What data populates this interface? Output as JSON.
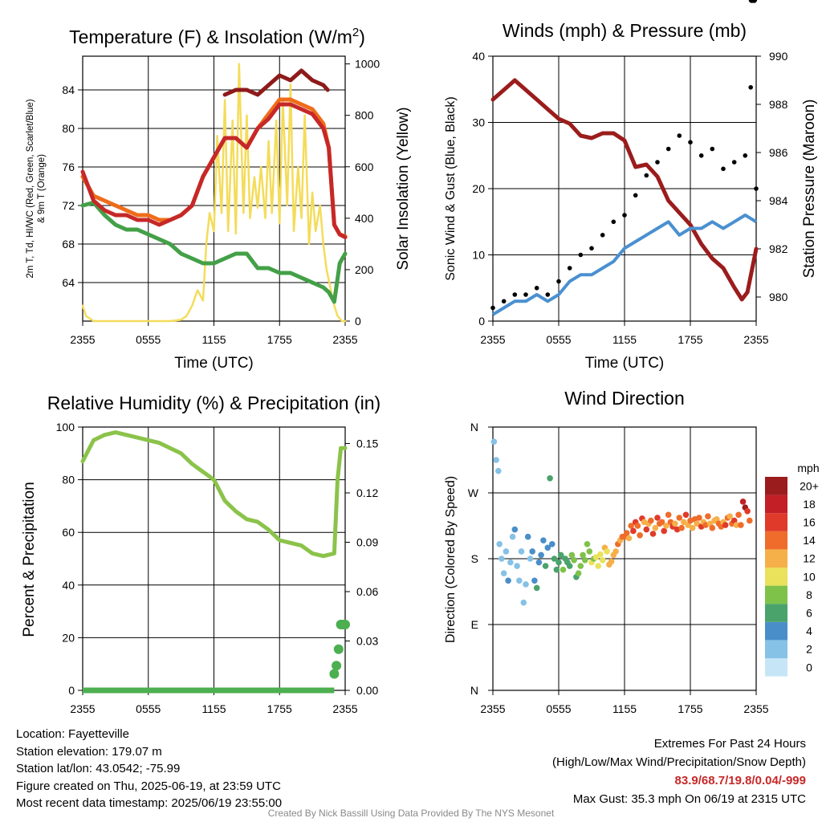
{
  "chart_data": [
    {
      "type": "line",
      "title": "Temperature (F) & Insolation (W/m²)",
      "title_main": "Temperature (F) & Insolation (W/m",
      "title_sup": "2",
      "title_end": ")",
      "xlabel": "Time (UTC)",
      "ylabel_lines": [
        "2m T, Td, HI/WC (Red, Green, Scarlet/Blue)",
        "& 9m T (Orange)"
      ],
      "y2label": "Solar Insolation (Yellow)",
      "x_ticks": [
        "2355",
        "0555",
        "1155",
        "1755",
        "2355"
      ],
      "ylim": [
        60,
        87.5
      ],
      "y_ticks": [
        64,
        68,
        72,
        76,
        80,
        84
      ],
      "y2lim": [
        0,
        1030
      ],
      "y2_ticks": [
        0,
        200,
        400,
        600,
        800,
        1000
      ],
      "x_hours": [
        0,
        24
      ],
      "series": [
        {
          "name": "2m T",
          "color": "#c62828",
          "x": [
            0,
            1,
            2,
            3,
            4,
            5,
            6,
            7,
            8,
            9,
            10,
            11,
            12,
            13,
            14,
            15,
            16,
            17,
            18,
            19,
            20,
            21,
            22,
            22.5,
            23,
            23.5,
            24
          ],
          "values": [
            75.5,
            72.5,
            71.5,
            71,
            71,
            70.5,
            70.5,
            70,
            70.5,
            71,
            72,
            75,
            77,
            79,
            79,
            78,
            80,
            81,
            82.5,
            82.5,
            82,
            81.5,
            80,
            78,
            70,
            69,
            68.7
          ]
        },
        {
          "name": "9m T",
          "color": "#ef6c1a",
          "x": [
            0,
            1,
            2,
            3,
            4,
            5,
            6,
            7,
            8,
            9,
            10,
            11,
            12,
            13,
            14,
            15,
            16,
            17,
            18,
            19,
            20,
            21,
            22,
            22.5,
            23,
            23.5,
            24
          ],
          "values": [
            75,
            73,
            72.5,
            72,
            71.5,
            71,
            71,
            70.5,
            70.5,
            71,
            72,
            75,
            77,
            79,
            79,
            78,
            80,
            81.5,
            83,
            83,
            82.5,
            82,
            80.5,
            78,
            70,
            69,
            68.8
          ]
        },
        {
          "name": "Td",
          "color": "#43a047",
          "x": [
            0,
            1,
            2,
            3,
            4,
            5,
            6,
            7,
            8,
            9,
            10,
            11,
            12,
            13,
            14,
            15,
            16,
            17,
            18,
            19,
            20,
            21,
            22,
            22.5,
            23,
            23.5,
            24
          ],
          "values": [
            72,
            72.3,
            71,
            70,
            69.5,
            69.5,
            69,
            68.5,
            68,
            67,
            66.5,
            66,
            66,
            66.5,
            67,
            67,
            65.5,
            65.5,
            65,
            65,
            64.5,
            64,
            63.5,
            63,
            62,
            66,
            67
          ]
        },
        {
          "name": "HI/WC",
          "color": "#8e1a1a",
          "x": [
            13,
            14,
            15,
            16,
            17,
            18,
            19,
            20,
            21,
            22,
            22.4
          ],
          "values": [
            83.5,
            84,
            84,
            83.5,
            84.5,
            85.5,
            85,
            86,
            85,
            84.5,
            84
          ]
        },
        {
          "name": "Insolation",
          "color": "#f4dc5a",
          "axis": "y2",
          "x": [
            0,
            0.3,
            1,
            2,
            3,
            4,
            5,
            6,
            7,
            8,
            9,
            9.5,
            10,
            10.5,
            11,
            11.3,
            11.6,
            12,
            12.3,
            12.7,
            13,
            13.3,
            13.7,
            14,
            14.3,
            14.7,
            15,
            15.3,
            15.7,
            16,
            16.3,
            16.7,
            17,
            17.3,
            17.7,
            18,
            18.3,
            18.7,
            19,
            19.3,
            19.7,
            20,
            20.3,
            20.7,
            21,
            21.3,
            21.7,
            22,
            22.3,
            22.7,
            23,
            23.3,
            23.7,
            24
          ],
          "values": [
            60,
            20,
            0,
            0,
            0,
            0,
            0,
            0,
            0,
            0,
            5,
            20,
            60,
            120,
            80,
            300,
            420,
            350,
            720,
            420,
            860,
            350,
            780,
            340,
            1000,
            420,
            800,
            400,
            560,
            440,
            600,
            400,
            700,
            420,
            780,
            380,
            860,
            450,
            920,
            350,
            600,
            400,
            800,
            300,
            500,
            350,
            450,
            300,
            200,
            120,
            60,
            20,
            0,
            0
          ]
        }
      ]
    },
    {
      "type": "line",
      "title": "Winds (mph) & Pressure (mb)",
      "xlabel": "Time (UTC)",
      "ylabel": "Sonic Wind & Gust (Blue, Black)",
      "y2label": "Station Pressure (Maroon)",
      "x_ticks": [
        "2355",
        "0555",
        "1155",
        "1755",
        "2355"
      ],
      "ylim": [
        0,
        40
      ],
      "y_ticks": [
        0,
        10,
        20,
        30,
        40
      ],
      "y2lim": [
        979,
        990
      ],
      "y2_ticks": [
        980,
        982,
        984,
        986,
        988,
        990
      ],
      "series": [
        {
          "name": "Sonic Wind",
          "color": "#4a90d0",
          "x": [
            0,
            1,
            2,
            3,
            4,
            5,
            6,
            7,
            8,
            9,
            10,
            11,
            12,
            13,
            14,
            15,
            16,
            17,
            18,
            19,
            20,
            21,
            22,
            23,
            24
          ],
          "values": [
            1,
            2,
            3,
            3,
            4,
            3,
            4,
            6,
            7,
            7,
            8,
            9,
            11,
            12,
            13,
            14,
            15,
            13,
            14,
            14,
            15,
            14,
            15,
            16,
            15
          ]
        },
        {
          "name": "Gust",
          "color": "#000000",
          "style": "dots",
          "x": [
            0,
            1,
            2,
            3,
            4,
            5,
            6,
            7,
            8,
            9,
            10,
            11,
            12,
            13,
            14,
            15,
            16,
            17,
            18,
            19,
            20,
            21,
            22,
            23,
            23.5,
            24
          ],
          "values": [
            2,
            3,
            4,
            4,
            5,
            4,
            6,
            8,
            10,
            11,
            13,
            15,
            16,
            19,
            22,
            24,
            26,
            28,
            27,
            25,
            26,
            23,
            24,
            25,
            35.3,
            20
          ]
        },
        {
          "name": "Station Pressure",
          "color": "#9b1c1c",
          "axis": "y2",
          "x": [
            0,
            1,
            2,
            3,
            4,
            5,
            6,
            7,
            8,
            9,
            10,
            11,
            12,
            13,
            14,
            15,
            16,
            17,
            18,
            19,
            20,
            21,
            22,
            22.7,
            23.2,
            24
          ],
          "values": [
            988.2,
            988.6,
            989.0,
            988.6,
            988.2,
            987.8,
            987.4,
            987.2,
            986.7,
            986.6,
            986.8,
            986.8,
            986.5,
            985.4,
            985.5,
            985,
            984,
            983.5,
            983,
            982.2,
            981.6,
            981.2,
            980.4,
            979.9,
            980.2,
            982
          ]
        }
      ]
    },
    {
      "type": "line",
      "title": "Relative Humidity (%) & Precipitation (in)",
      "ylabel": "Percent & Precipitation",
      "x_ticks": [
        "2355",
        "0555",
        "1155",
        "1755",
        "2355"
      ],
      "ylim": [
        0,
        100
      ],
      "y_ticks": [
        0,
        20,
        40,
        60,
        80,
        100
      ],
      "y2lim": [
        0,
        0.16
      ],
      "y2_ticks": [
        "0.00",
        "0.03",
        "0.06",
        "0.09",
        "0.12",
        "0.15"
      ],
      "series": [
        {
          "name": "RH",
          "color": "#8bc34a",
          "x": [
            0,
            1,
            2,
            3,
            4,
            5,
            6,
            7,
            8,
            9,
            10,
            11,
            12,
            13,
            14,
            15,
            16,
            17,
            18,
            19,
            20,
            21,
            22,
            23,
            23.3,
            23.6,
            24
          ],
          "values": [
            87,
            95,
            97,
            98,
            97,
            96,
            95,
            94,
            92,
            90,
            86,
            83,
            80,
            72,
            68,
            65,
            64,
            61,
            57,
            56,
            55,
            52,
            51,
            52,
            80,
            92,
            92
          ]
        },
        {
          "name": "Precipitation",
          "color": "#4caf50",
          "axis": "y2",
          "x": [
            0,
            4,
            8,
            12,
            16,
            20,
            22.5,
            23,
            23.2,
            23.4,
            23.6,
            23.8,
            24
          ],
          "values": [
            0,
            0,
            0,
            0,
            0,
            0,
            0,
            0.01,
            0.015,
            0.025,
            0.04,
            0.04,
            0.04
          ]
        }
      ]
    },
    {
      "type": "scatter",
      "title": "Wind Direction",
      "ylabel": "Direction (Colored By Speed)",
      "x_ticks": [
        "2355",
        "0555",
        "1155",
        "1755",
        "2355"
      ],
      "y_ticks": [
        "N",
        "E",
        "S",
        "W",
        "N"
      ],
      "ylim": [
        0,
        360
      ],
      "colorbar_title": "mph",
      "colorbar_labels": [
        "0",
        "2",
        "4",
        "6",
        "8",
        "10",
        "12",
        "14",
        "16",
        "18",
        "20+"
      ],
      "colorbar_colors": [
        "#c6e6f7",
        "#86c1e6",
        "#4a8ec9",
        "#4aa36a",
        "#7ec24a",
        "#e9e25a",
        "#f5b04a",
        "#ef6c2a",
        "#e03a2a",
        "#c21f26",
        "#9b1c1c"
      ],
      "points_x": [
        0.1,
        0.3,
        0.5,
        0.6,
        0.8,
        1.0,
        1.2,
        1.4,
        1.6,
        1.8,
        2.0,
        2.2,
        2.4,
        2.6,
        2.8,
        3.0,
        3.2,
        3.4,
        3.6,
        3.8,
        4.0,
        4.2,
        4.4,
        4.6,
        4.8,
        5.0,
        5.2,
        5.4,
        5.6,
        5.8,
        6.0,
        6.2,
        6.4,
        6.6,
        6.8,
        7.0,
        7.2,
        7.4,
        7.6,
        7.8,
        8.0,
        8.2,
        8.4,
        8.6,
        8.8,
        9.0,
        9.2,
        9.4,
        9.6,
        9.8,
        10.0,
        10.2,
        10.4,
        10.6,
        10.8,
        11.0,
        11.2,
        11.4,
        11.6,
        11.8,
        12.0,
        12.2,
        12.4,
        12.6,
        12.8,
        13.0,
        13.2,
        13.4,
        13.6,
        13.8,
        14.0,
        14.2,
        14.4,
        14.6,
        14.8,
        15.0,
        15.2,
        15.4,
        15.6,
        15.8,
        16.0,
        16.2,
        16.4,
        16.6,
        16.8,
        17.0,
        17.2,
        17.4,
        17.6,
        17.8,
        18.0,
        18.2,
        18.4,
        18.6,
        18.8,
        19.0,
        19.2,
        19.4,
        19.6,
        19.8,
        20.0,
        20.2,
        20.4,
        20.6,
        20.8,
        21.0,
        21.2,
        21.4,
        21.6,
        21.8,
        22.0,
        22.2,
        22.4,
        22.6,
        22.8,
        23.0,
        23.2,
        23.4,
        23.6,
        23.8
      ],
      "points_dir": [
        340,
        315,
        300,
        200,
        180,
        160,
        190,
        150,
        175,
        210,
        220,
        170,
        150,
        190,
        120,
        145,
        210,
        180,
        190,
        150,
        140,
        175,
        185,
        205,
        170,
        195,
        290,
        200,
        180,
        165,
        175,
        185,
        165,
        180,
        175,
        170,
        185,
        178,
        155,
        160,
        170,
        185,
        178,
        200,
        190,
        175,
        180,
        182,
        170,
        186,
        178,
        195,
        190,
        172,
        176,
        185,
        190,
        200,
        205,
        210,
        210,
        215,
        208,
        225,
        218,
        230,
        225,
        212,
        235,
        230,
        220,
        228,
        232,
        214,
        222,
        236,
        228,
        230,
        218,
        225,
        240,
        230,
        224,
        228,
        220,
        236,
        222,
        230,
        240,
        226,
        232,
        222,
        234,
        228,
        236,
        224,
        230,
        226,
        238,
        228,
        222,
        232,
        234,
        228,
        224,
        230,
        226,
        236,
        238,
        228,
        232,
        226,
        240,
        226,
        258,
        250,
        245,
        232
      ],
      "points_speed": [
        1,
        1,
        2,
        2,
        1,
        1,
        2,
        3,
        1,
        2,
        3,
        2,
        1,
        2,
        1,
        2,
        3,
        2,
        4,
        4,
        5,
        4,
        3,
        4,
        5,
        4,
        5,
        4,
        5,
        6,
        5,
        6,
        7,
        6,
        5,
        6,
        7,
        8,
        6,
        7,
        7,
        8,
        8,
        7,
        8,
        9,
        8,
        9,
        10,
        9,
        10,
        11,
        10,
        11,
        12,
        11,
        12,
        13,
        12,
        13,
        14,
        13,
        12,
        14,
        15,
        16,
        14,
        13,
        15,
        12,
        16,
        11,
        14,
        15,
        12,
        16,
        13,
        14,
        15,
        12,
        13,
        14,
        15,
        12,
        16,
        13,
        14,
        12,
        15,
        11,
        13,
        12,
        14,
        12,
        13,
        15,
        12,
        13,
        14,
        12,
        13,
        11,
        12,
        13,
        14,
        12,
        16,
        13,
        12,
        14,
        15,
        12,
        13,
        14,
        18,
        20,
        16,
        13
      ]
    }
  ],
  "info": {
    "location": "Location: Fayetteville",
    "elevation": "Station elevation: 179.07 m",
    "latlon": "Station lat/lon: 43.0542; -75.99",
    "created": "Figure created on Thu, 2025-06-19, at 23:59 UTC",
    "recent": "Most recent data timestamp: 2025/06/19 23:55:00"
  },
  "extremes": {
    "heading": "Extremes For Past 24 Hours",
    "subheading": "(High/Low/Max Wind/Precipitation/Snow Depth)",
    "values": "83.9/68.7/19.8/0.04/-999",
    "gust": "Max Gust: 35.3 mph On 06/19 at 2315 UTC"
  },
  "credit": "Created By Nick Bassill Using Data Provided By The NYS Mesonet"
}
